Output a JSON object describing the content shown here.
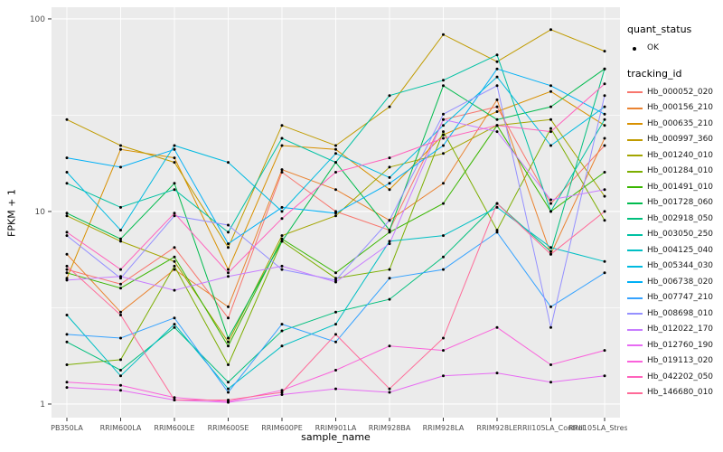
{
  "legend": {
    "quant_title": "quant_status",
    "quant_items": [
      {
        "label": "OK",
        "symbol": "black-point-icon"
      }
    ],
    "tracking_title": "tracking_id"
  },
  "chart_data": {
    "type": "line",
    "title": "",
    "xlabel": "sample_name",
    "ylabel": "FPKM + 1",
    "y_scale": "log10",
    "y_ticks": [
      1,
      10,
      100
    ],
    "y_minor": [
      3.162,
      31.62
    ],
    "ylim": [
      0.85,
      115
    ],
    "panel_bg": "#EBEBEB",
    "grid_color": "#FFFFFF",
    "tick_color": "#333333",
    "tick_label_color": "#4D4D4D",
    "point_color": "#000000",
    "legend_position": "right",
    "categories": [
      "PB350LA",
      "RRIM600LA",
      "RRIM600LE",
      "RRIM600SE",
      "RRIM600PE",
      "RRIM901LA",
      "RRIM928BA",
      "RRIM928LA",
      "RRIM928LE",
      "RRII105LA_Control",
      "RRII105LA_Stressed"
    ],
    "series": [
      {
        "name": "Hb_000052_020",
        "color": "#F8766D",
        "values": [
          5.0,
          4.2,
          6.5,
          2.8,
          16,
          10,
          8.0,
          30,
          35,
          11,
          22
        ]
      },
      {
        "name": "Hb_000156_210",
        "color": "#EA8331",
        "values": [
          6.0,
          3.0,
          5.0,
          3.2,
          16.5,
          13,
          9.0,
          14,
          38,
          6.0,
          24
        ]
      },
      {
        "name": "Hb_000635_210",
        "color": "#D89000",
        "values": [
          4.5,
          21,
          19,
          5.0,
          22,
          21,
          13,
          25,
          33,
          42,
          28
        ]
      },
      {
        "name": "Hb_000997_360",
        "color": "#C09B00",
        "values": [
          30,
          22,
          18,
          6.5,
          28,
          22,
          35,
          83,
          60,
          88,
          68
        ]
      },
      {
        "name": "Hb_001240_010",
        "color": "#A3A500",
        "values": [
          9.5,
          7.0,
          5.5,
          2.1,
          7.5,
          9.5,
          17,
          20,
          28,
          30,
          12
        ]
      },
      {
        "name": "Hb_001284_010",
        "color": "#7CAE00",
        "values": [
          1.6,
          1.7,
          5.2,
          1.6,
          7.0,
          4.5,
          5.0,
          26,
          8.0,
          27,
          9.0
        ]
      },
      {
        "name": "Hb_001491_010",
        "color": "#39B600",
        "values": [
          4.8,
          4.0,
          5.8,
          2.0,
          7.2,
          4.8,
          7.8,
          11,
          28,
          10,
          16
        ]
      },
      {
        "name": "Hb_001728_060",
        "color": "#00BB4E",
        "values": [
          9.8,
          7.2,
          14,
          2.2,
          7.0,
          18,
          8.0,
          45,
          30,
          35,
          55
        ]
      },
      {
        "name": "Hb_002918_050",
        "color": "#00BF7D",
        "values": [
          2.1,
          1.5,
          2.5,
          1.3,
          2.4,
          3.0,
          3.5,
          5.8,
          11,
          6.2,
          55
        ]
      },
      {
        "name": "Hb_003050_250",
        "color": "#00C1A3",
        "values": [
          14,
          10.5,
          13,
          7.8,
          24,
          18,
          40,
          48,
          65,
          10,
          30
        ]
      },
      {
        "name": "Hb_004125_040",
        "color": "#00BFC4",
        "values": [
          2.9,
          1.4,
          2.6,
          1.2,
          2.0,
          2.6,
          7.0,
          7.5,
          10.5,
          6.5,
          5.5
        ]
      },
      {
        "name": "Hb_005344_030",
        "color": "#00BAE0",
        "values": [
          16,
          8.0,
          22,
          18,
          10,
          20,
          15,
          28,
          50,
          22,
          35
        ]
      },
      {
        "name": "Hb_006738_020",
        "color": "#00B0F6",
        "values": [
          19,
          17,
          21,
          6.8,
          10.5,
          9.8,
          14,
          22,
          55,
          45,
          32
        ]
      },
      {
        "name": "Hb_007747_210",
        "color": "#35A2FF",
        "values": [
          2.3,
          2.2,
          2.8,
          1.15,
          2.6,
          2.1,
          4.5,
          5.0,
          7.8,
          3.2,
          4.8
        ]
      },
      {
        "name": "Hb_008698_010",
        "color": "#9590FF",
        "values": [
          7.5,
          4.5,
          9.5,
          8.5,
          5.0,
          4.4,
          9.0,
          32,
          45,
          2.5,
          40
        ]
      },
      {
        "name": "Hb_012022_170",
        "color": "#C77CFF",
        "values": [
          4.4,
          4.6,
          3.9,
          4.6,
          5.2,
          4.3,
          6.8,
          30,
          26,
          11.5,
          13
        ]
      },
      {
        "name": "Hb_012760_190",
        "color": "#E76BF3",
        "values": [
          1.22,
          1.18,
          1.05,
          1.02,
          1.12,
          1.2,
          1.15,
          1.4,
          1.45,
          1.3,
          1.4
        ]
      },
      {
        "name": "Hb_019113_020",
        "color": "#FA62DB",
        "values": [
          1.3,
          1.25,
          1.08,
          1.03,
          1.18,
          1.5,
          2.0,
          1.9,
          2.5,
          1.6,
          1.9
        ]
      },
      {
        "name": "Hb_042202_050",
        "color": "#FF62BC",
        "values": [
          7.8,
          5.0,
          9.8,
          4.8,
          9.2,
          16,
          19,
          24,
          28,
          26,
          46
        ]
      },
      {
        "name": "Hb_146680_010",
        "color": "#FF6A98",
        "values": [
          5.2,
          2.9,
          1.05,
          1.05,
          1.15,
          2.3,
          1.2,
          2.2,
          11,
          6.0,
          10
        ]
      }
    ]
  }
}
